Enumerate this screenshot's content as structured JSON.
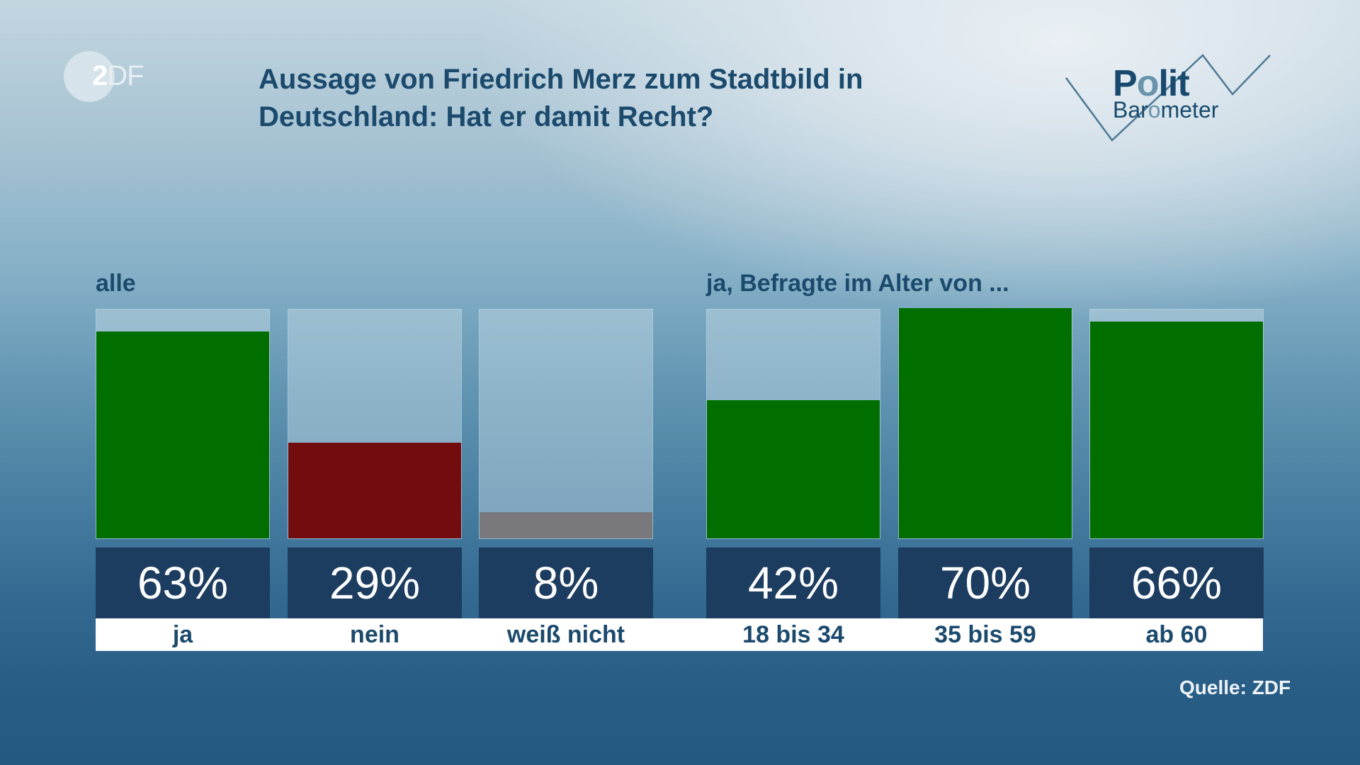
{
  "brand": {
    "zdf_logo_text_first": "2",
    "zdf_logo_text_rest": "DF",
    "politbarometer_line1_a": "P",
    "politbarometer_line1_b": "o",
    "politbarometer_line1_c": "lit",
    "politbarometer_line2_a": "Bar",
    "politbarometer_line2_b": "o",
    "politbarometer_line2_c": "meter"
  },
  "colors": {
    "yes": "#006f00",
    "no": "#720c0e",
    "dont_know": "#78787d",
    "value_box": "#1c3d60",
    "text_dark": "#1b4a6d"
  },
  "source": "Quelle: ZDF",
  "chart_data": {
    "type": "bar",
    "title": "Aussage von Friedrich Merz zum Stadtbild in Deutschland: Hat er damit Recht?",
    "title_line1": "Aussage von Friedrich Merz zum Stadtbild in",
    "title_line2": "Deutschland: Hat er damit Recht?",
    "value_max": 70,
    "unit": "%",
    "groups": [
      {
        "label": "alle",
        "bars": [
          {
            "category": "ja",
            "value": 63,
            "value_label": "63%",
            "color_key": "yes"
          },
          {
            "category": "nein",
            "value": 29,
            "value_label": "29%",
            "color_key": "no"
          },
          {
            "category": "weiß nicht",
            "value": 8,
            "value_label": "8%",
            "color_key": "dont_know"
          }
        ]
      },
      {
        "label": "ja, Befragte im Alter von ...",
        "bars": [
          {
            "category": "18 bis 34",
            "value": 42,
            "value_label": "42%",
            "color_key": "yes"
          },
          {
            "category": "35 bis 59",
            "value": 70,
            "value_label": "70%",
            "color_key": "yes"
          },
          {
            "category": "ab 60",
            "value": 66,
            "value_label": "66%",
            "color_key": "yes"
          }
        ]
      }
    ]
  }
}
